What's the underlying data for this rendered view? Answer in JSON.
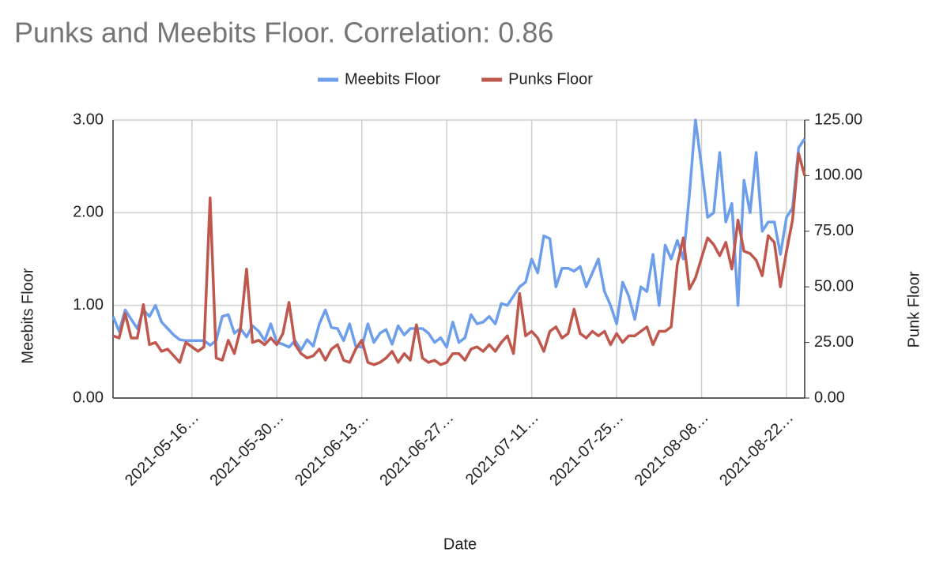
{
  "chart_data": {
    "type": "line",
    "title": "Punks and Meebits Floor.  Correlation: 0.86",
    "x_label": "Date",
    "y_label": "Meebits Floor",
    "y2_label": "Punk Floor",
    "categories": [
      null,
      null,
      null,
      null,
      null,
      null,
      null,
      null,
      null,
      null,
      null,
      null,
      null,
      "2021-05-16…",
      null,
      null,
      null,
      null,
      null,
      null,
      null,
      null,
      null,
      null,
      null,
      null,
      null,
      "2021-05-30…",
      null,
      null,
      null,
      null,
      null,
      null,
      null,
      null,
      null,
      null,
      null,
      null,
      null,
      "2021-06-13…",
      null,
      null,
      null,
      null,
      null,
      null,
      null,
      null,
      null,
      null,
      null,
      null,
      null,
      "2021-06-27…",
      null,
      null,
      null,
      null,
      null,
      null,
      null,
      null,
      null,
      null,
      null,
      null,
      null,
      "2021-07-11…",
      null,
      null,
      null,
      null,
      null,
      null,
      null,
      null,
      null,
      null,
      null,
      null,
      null,
      "2021-07-25…",
      null,
      null,
      null,
      null,
      null,
      null,
      null,
      null,
      null,
      null,
      null,
      null,
      null,
      "2021-08-08…",
      null,
      null,
      null,
      null,
      null,
      null,
      null,
      null,
      null,
      null,
      null,
      null,
      null,
      "2021-08-22…",
      null,
      null,
      null
    ],
    "series": [
      {
        "name": "Meebits Floor",
        "color": "#6d9eeb",
        "axis": "y",
        "values": [
          0.88,
          0.72,
          0.95,
          0.85,
          0.75,
          0.95,
          0.88,
          1.0,
          0.82,
          0.75,
          0.68,
          0.63,
          0.62,
          0.62,
          0.62,
          0.62,
          0.57,
          0.62,
          0.88,
          0.9,
          0.7,
          0.75,
          0.66,
          0.78,
          0.72,
          0.62,
          0.8,
          0.6,
          0.58,
          0.55,
          0.62,
          0.52,
          0.63,
          0.56,
          0.8,
          0.95,
          0.76,
          0.75,
          0.62,
          0.8,
          0.56,
          0.55,
          0.8,
          0.6,
          0.7,
          0.74,
          0.58,
          0.78,
          0.68,
          0.75,
          0.75,
          0.75,
          0.7,
          0.6,
          0.65,
          0.55,
          0.82,
          0.6,
          0.65,
          0.9,
          0.8,
          0.82,
          0.88,
          0.8,
          1.02,
          1.0,
          1.1,
          1.2,
          1.25,
          1.5,
          1.35,
          1.75,
          1.72,
          1.2,
          1.4,
          1.4,
          1.37,
          1.42,
          1.2,
          1.35,
          1.5,
          1.15,
          1.0,
          0.8,
          1.25,
          1.1,
          0.85,
          1.2,
          1.15,
          1.55,
          1.0,
          1.65,
          1.5,
          1.7,
          1.5,
          2.2,
          3.0,
          2.5,
          1.95,
          2.0,
          2.65,
          1.9,
          2.1,
          1.0,
          2.35,
          2.0,
          2.65,
          1.8,
          1.9,
          1.9,
          1.55,
          1.95,
          2.05,
          2.7,
          2.8
        ]
      },
      {
        "name": "Punks Floor",
        "color": "#c0574c",
        "axis": "y2",
        "values": [
          28,
          27,
          38,
          27,
          27,
          42,
          24,
          25,
          21,
          22,
          19,
          16,
          25,
          23,
          21,
          23,
          90,
          18,
          17,
          26,
          20,
          31,
          58,
          25,
          26,
          24,
          27,
          24,
          29,
          43,
          24,
          20,
          18,
          19,
          22,
          17,
          22,
          24,
          17,
          16,
          22,
          26,
          16,
          15,
          16,
          18,
          21,
          16,
          20,
          17,
          33,
          18,
          16,
          17,
          15,
          16,
          20,
          20,
          17,
          22,
          23,
          21,
          24,
          21,
          25,
          28,
          20,
          47,
          28,
          30,
          27,
          21,
          30,
          32,
          27,
          29,
          40,
          29,
          27,
          30,
          28,
          30,
          24,
          29,
          25,
          28,
          28,
          30,
          32,
          24,
          30,
          30,
          32,
          60,
          72,
          49,
          54,
          63,
          72,
          69,
          64,
          70,
          58,
          80,
          66,
          65,
          62,
          55,
          73,
          70,
          50,
          66,
          80,
          110,
          100
        ]
      }
    ],
    "ylim": [
      0,
      3
    ],
    "yticks": [
      {
        "value": 0,
        "label": "0.00"
      },
      {
        "value": 1,
        "label": "1.00"
      },
      {
        "value": 2,
        "label": "2.00"
      },
      {
        "value": 3,
        "label": "3.00"
      }
    ],
    "y2lim": [
      0,
      125
    ],
    "y2ticks": [
      {
        "value": 0,
        "label": "0.00"
      },
      {
        "value": 25,
        "label": "25.00"
      },
      {
        "value": 50,
        "label": "50.00"
      },
      {
        "value": 75,
        "label": "75.00"
      },
      {
        "value": 100,
        "label": "100.00"
      },
      {
        "value": 125,
        "label": "125.00"
      }
    ],
    "grid": true,
    "legend": "top"
  }
}
